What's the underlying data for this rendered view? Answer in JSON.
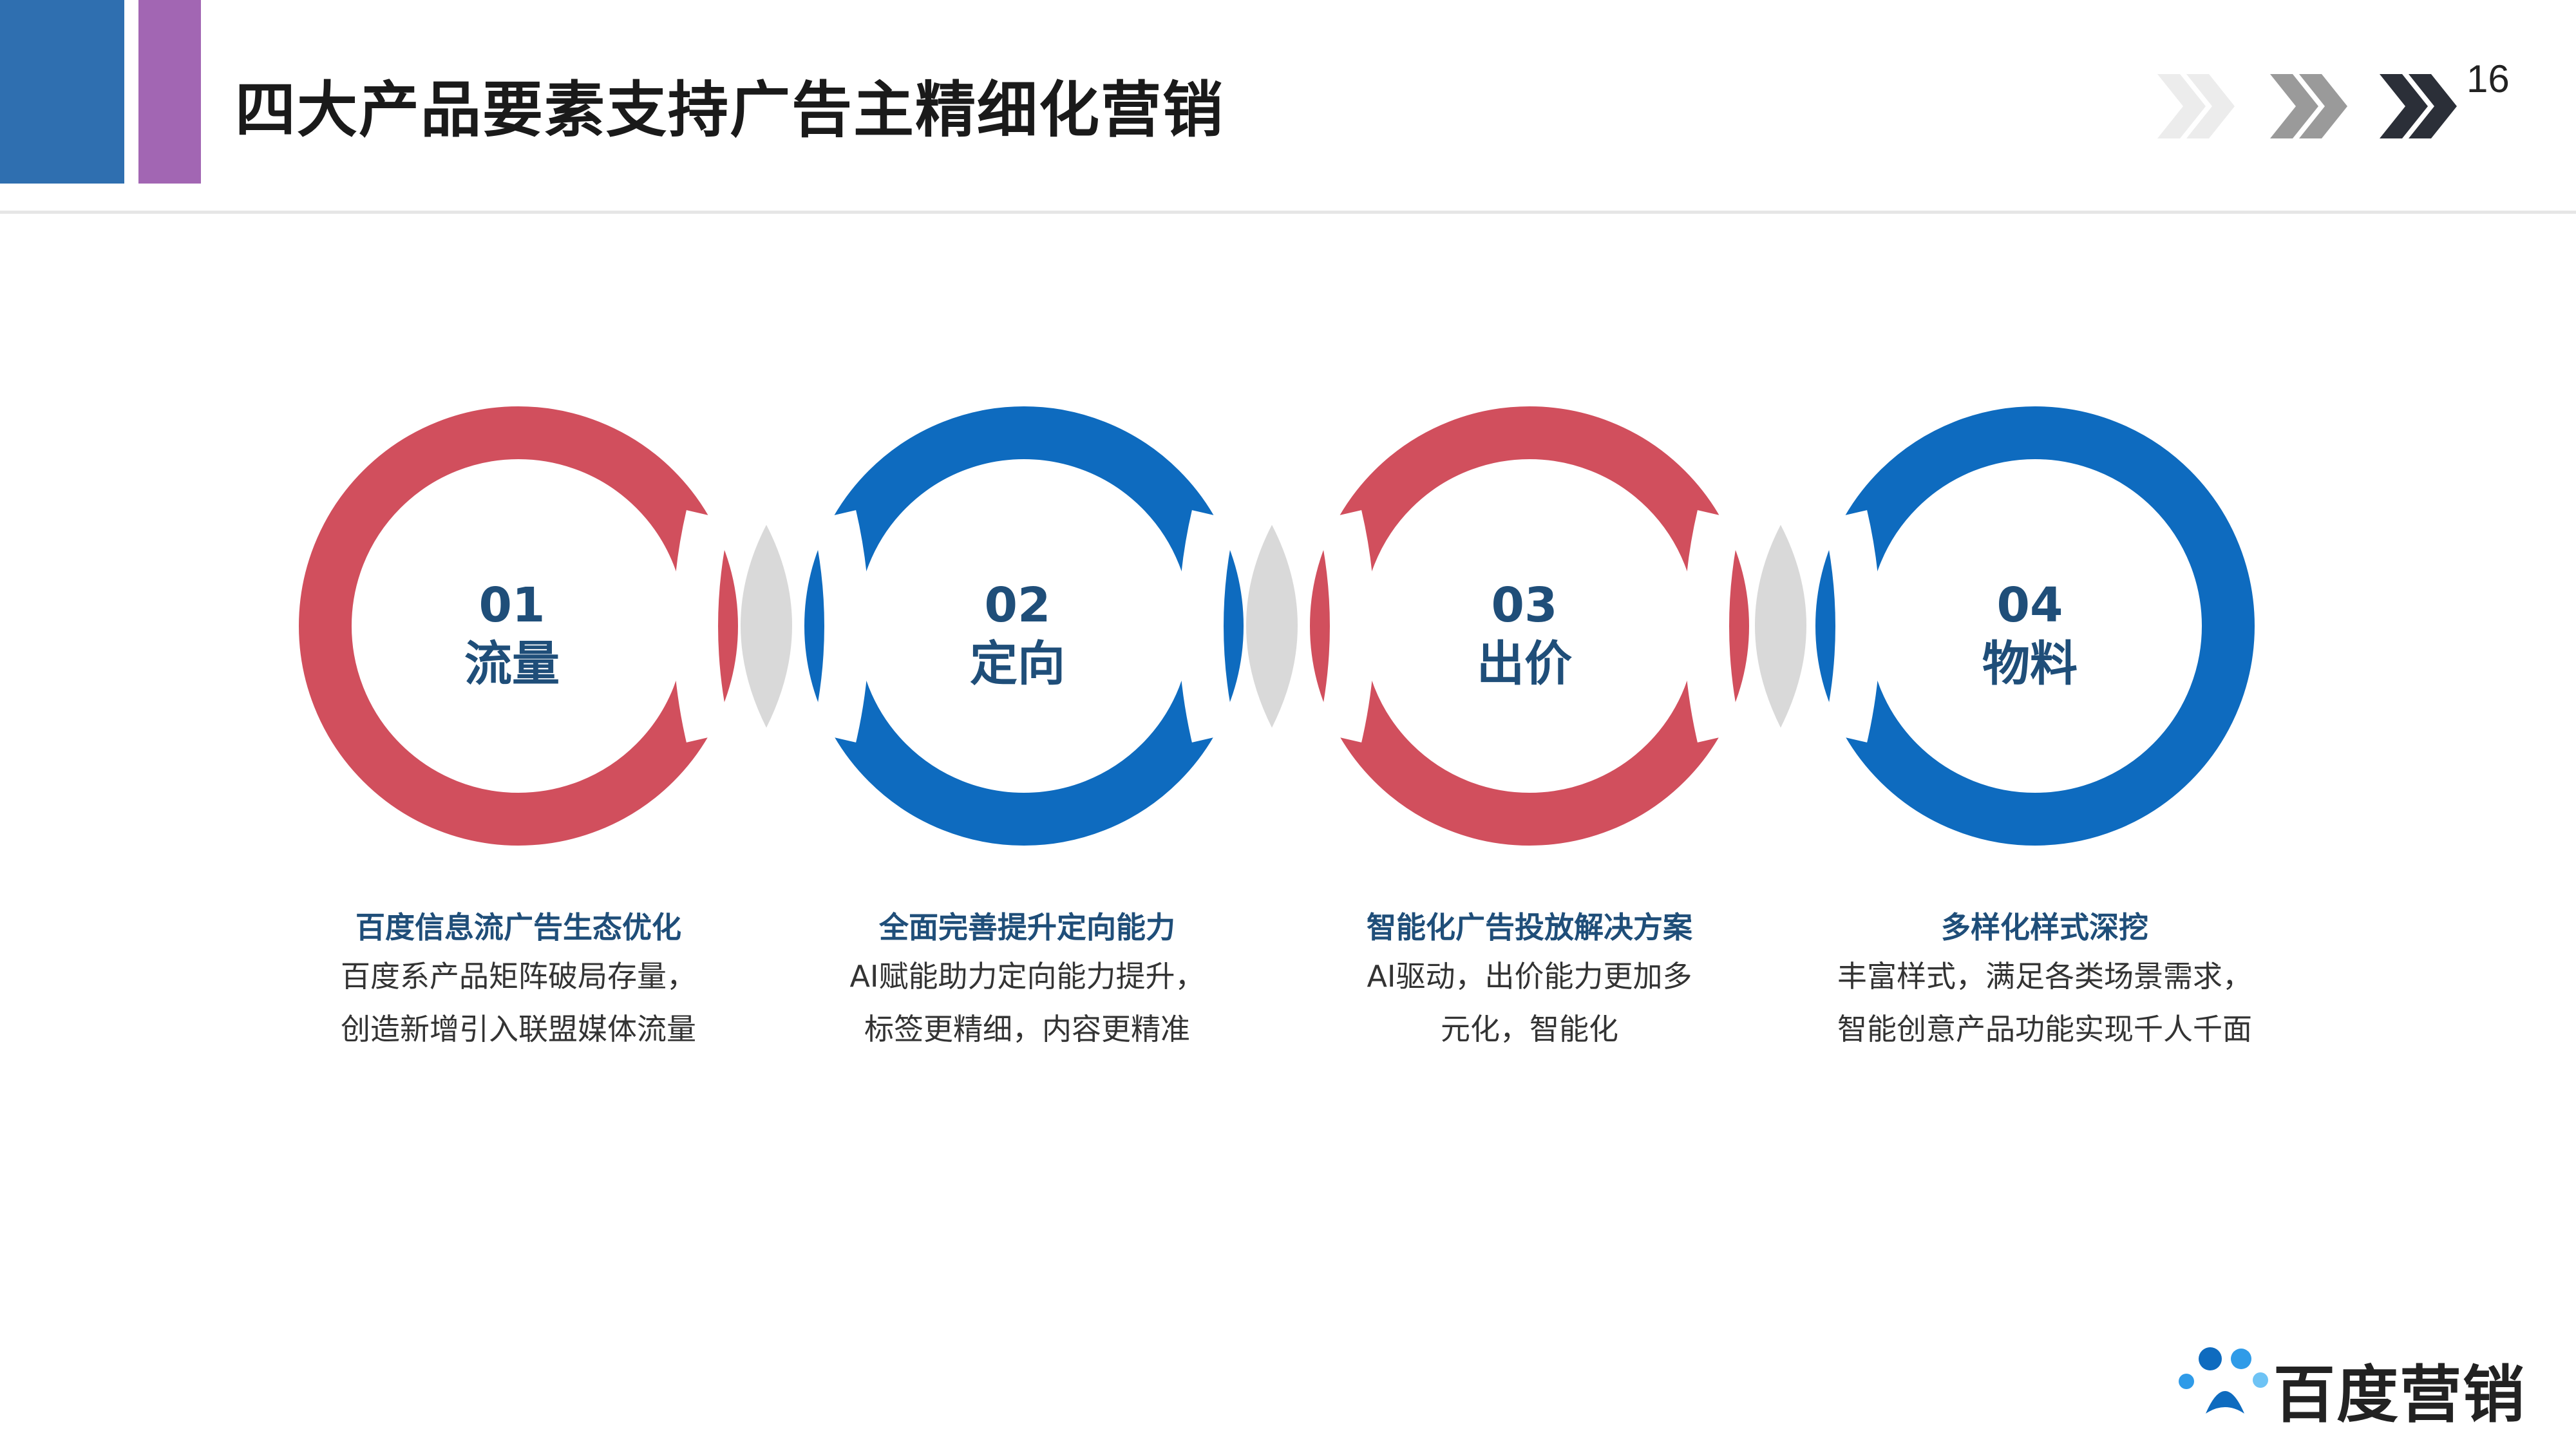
{
  "header": {
    "title": "四大产品要素支持广告主精细化营销",
    "page_number": "16",
    "chevron_icons": [
      "chevron-right-icon",
      "chevron-right-icon",
      "chevron-right-icon"
    ]
  },
  "colors": {
    "red": "#d14f5d",
    "blue": "#0e6bbf",
    "gray_lens": "#d9d9d9",
    "label": "#1f4e79"
  },
  "elements": [
    {
      "number": "01",
      "name": "流量",
      "ring_color": "red",
      "heading": "百度信息流广告生态优化",
      "lines": [
        "百度系产品矩阵破局存量，",
        "创造新增引入联盟媒体流量"
      ]
    },
    {
      "number": "02",
      "name": "定向",
      "ring_color": "blue",
      "heading": "全面完善提升定向能力",
      "lines": [
        "AI赋能助力定向能力提升，",
        "标签更精细，内容更精准"
      ]
    },
    {
      "number": "03",
      "name": "出价",
      "ring_color": "red",
      "heading": "智能化广告投放解决方案",
      "lines": [
        "AI驱动，出价能力更加多",
        "元化，智能化"
      ]
    },
    {
      "number": "04",
      "name": "物料",
      "ring_color": "blue",
      "heading": "多样化样式深挖",
      "lines": [
        "丰富样式，满足各类场景需求，",
        "智能创意产品功能实现千人千面"
      ]
    }
  ],
  "logo": {
    "text": "百度营销",
    "icon": "baidu-marketing-logo-icon"
  }
}
